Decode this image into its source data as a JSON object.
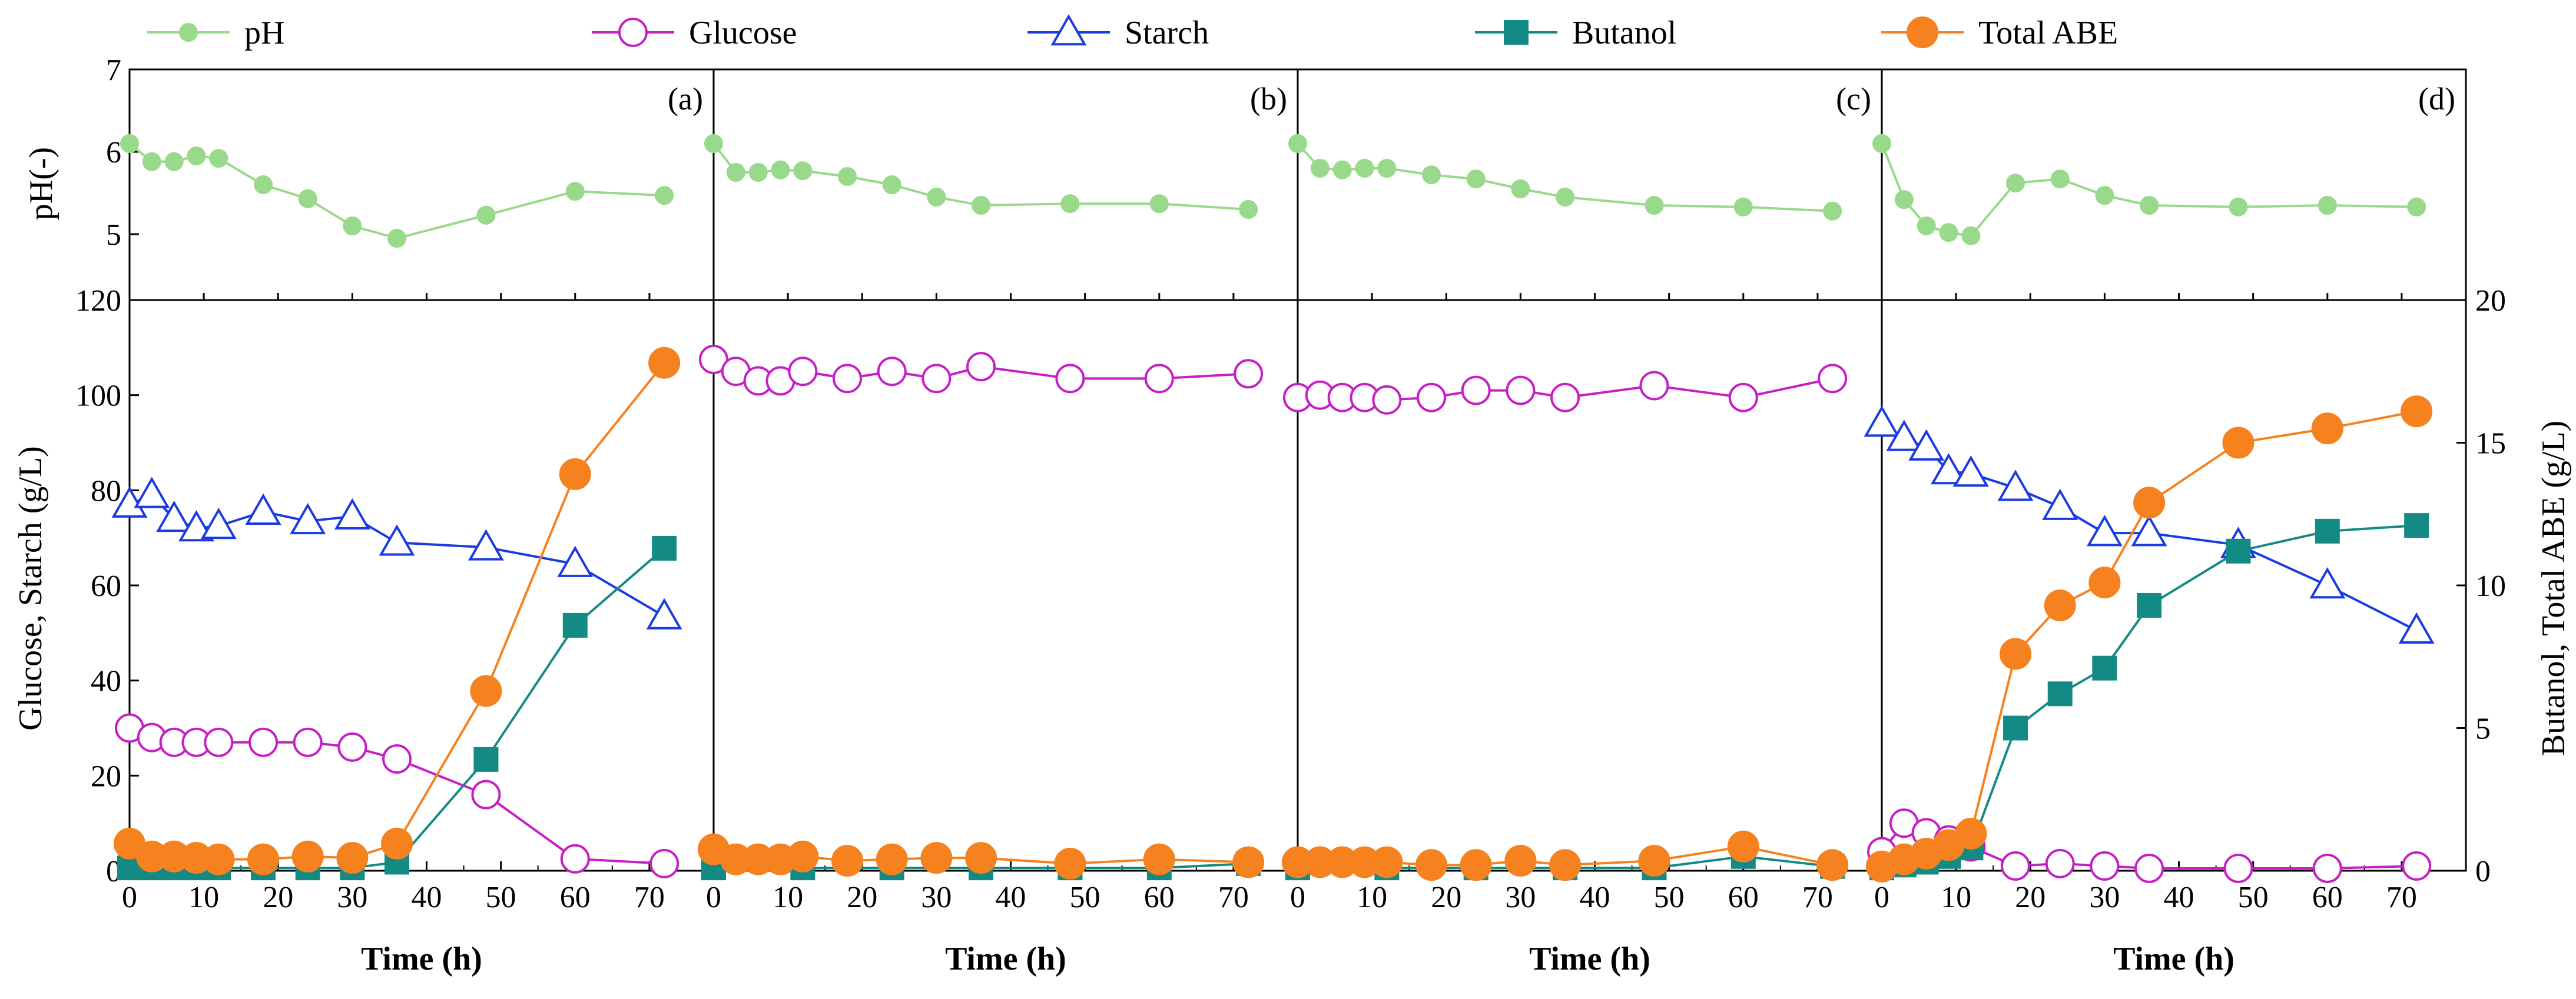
{
  "chart_data": {
    "type": "line",
    "legend": {
      "placement": "top",
      "items": [
        {
          "key": "ph",
          "label": "pH",
          "color": "#99d98c",
          "marker": "filled-circle"
        },
        {
          "key": "glucose",
          "label": "Glucose",
          "color": "#c51fc5",
          "marker": "open-circle"
        },
        {
          "key": "starch",
          "label": "Starch",
          "color": "#1a3be0",
          "marker": "open-triangle"
        },
        {
          "key": "butanol",
          "label": "Butanol",
          "color": "#138a84",
          "marker": "filled-square"
        },
        {
          "key": "abe",
          "label": "Total ABE",
          "color": "#f5821f",
          "marker": "filled-circle"
        }
      ]
    },
    "axes": {
      "x_label": "Time (h)",
      "x_range": [
        0,
        75
      ],
      "x_ticks": [
        0,
        10,
        20,
        30,
        40,
        50,
        60,
        70
      ],
      "ph_label": "pH(-)",
      "ph_range": [
        4.2,
        7
      ],
      "ph_ticks": [
        5,
        6,
        7
      ],
      "left_label": "Glucose, Starch (g/L)",
      "left_range": [
        0,
        120
      ],
      "left_ticks": [
        0,
        20,
        40,
        60,
        80,
        100,
        120
      ],
      "right_label": "Butanol, Total ABE (g/L)",
      "right_range": [
        0,
        20
      ],
      "right_ticks": [
        0,
        5,
        10,
        15,
        20
      ]
    },
    "panels": [
      {
        "label": "(a)",
        "ph": [
          [
            0,
            6.1
          ],
          [
            3,
            5.88
          ],
          [
            6,
            5.88
          ],
          [
            9,
            5.95
          ],
          [
            12,
            5.92
          ],
          [
            18,
            5.6
          ],
          [
            24,
            5.43
          ],
          [
            30,
            5.1
          ],
          [
            36,
            4.95
          ],
          [
            48,
            5.23
          ],
          [
            60,
            5.52
          ],
          [
            72,
            5.47
          ]
        ],
        "glucose": [
          [
            0,
            30
          ],
          [
            3,
            28
          ],
          [
            6,
            27
          ],
          [
            9,
            27
          ],
          [
            12,
            27
          ],
          [
            18,
            27
          ],
          [
            24,
            27
          ],
          [
            30,
            26
          ],
          [
            36,
            23.5
          ],
          [
            48,
            16
          ],
          [
            60,
            2.5
          ],
          [
            72,
            1.5
          ]
        ],
        "starch": [
          [
            0,
            77
          ],
          [
            3,
            79
          ],
          [
            6,
            74
          ],
          [
            9,
            72
          ],
          [
            12,
            72.5
          ],
          [
            18,
            75.5
          ],
          [
            24,
            73.5
          ],
          [
            30,
            74.5
          ],
          [
            36,
            69
          ],
          [
            48,
            68
          ],
          [
            60,
            64.5
          ],
          [
            72,
            53.5
          ]
        ],
        "butanol": [
          [
            0,
            0.1
          ],
          [
            3,
            0.1
          ],
          [
            6,
            0.1
          ],
          [
            9,
            0.1
          ],
          [
            12,
            0.1
          ],
          [
            18,
            0.1
          ],
          [
            24,
            0.1
          ],
          [
            30,
            0.1
          ],
          [
            36,
            0.3
          ],
          [
            48,
            3.9
          ],
          [
            60,
            8.6
          ],
          [
            72,
            11.3
          ]
        ],
        "abe": [
          [
            0,
            0.95
          ],
          [
            3,
            0.5
          ],
          [
            6,
            0.5
          ],
          [
            9,
            0.45
          ],
          [
            12,
            0.4
          ],
          [
            18,
            0.4
          ],
          [
            24,
            0.5
          ],
          [
            30,
            0.45
          ],
          [
            36,
            0.95
          ],
          [
            48,
            6.3
          ],
          [
            60,
            13.9
          ],
          [
            72,
            17.8
          ]
        ]
      },
      {
        "label": "(b)",
        "ph": [
          [
            0,
            6.1
          ],
          [
            3,
            5.75
          ],
          [
            6,
            5.75
          ],
          [
            9,
            5.78
          ],
          [
            12,
            5.77
          ],
          [
            18,
            5.7
          ],
          [
            24,
            5.6
          ],
          [
            30,
            5.45
          ],
          [
            36,
            5.35
          ],
          [
            48,
            5.37
          ],
          [
            60,
            5.37
          ],
          [
            72,
            5.3
          ]
        ],
        "glucose": [
          [
            0,
            107.5
          ],
          [
            3,
            105
          ],
          [
            6,
            103
          ],
          [
            9,
            103
          ],
          [
            12,
            105
          ],
          [
            18,
            103.5
          ],
          [
            24,
            105
          ],
          [
            30,
            103.5
          ],
          [
            36,
            106
          ],
          [
            48,
            103.5
          ],
          [
            60,
            103.5
          ],
          [
            72,
            104.5
          ]
        ],
        "starch": [],
        "butanol": [
          [
            0,
            0.1
          ],
          [
            12,
            0.1
          ],
          [
            24,
            0.1
          ],
          [
            36,
            0.1
          ],
          [
            48,
            0.1
          ],
          [
            60,
            0.1
          ],
          [
            72,
            0.25
          ]
        ],
        "abe": [
          [
            0,
            0.75
          ],
          [
            3,
            0.4
          ],
          [
            6,
            0.4
          ],
          [
            9,
            0.4
          ],
          [
            12,
            0.5
          ],
          [
            18,
            0.35
          ],
          [
            24,
            0.4
          ],
          [
            30,
            0.45
          ],
          [
            36,
            0.45
          ],
          [
            48,
            0.25
          ],
          [
            60,
            0.4
          ],
          [
            72,
            0.3
          ]
        ]
      },
      {
        "label": "(c)",
        "ph": [
          [
            0,
            6.1
          ],
          [
            3,
            5.8
          ],
          [
            6,
            5.78
          ],
          [
            9,
            5.8
          ],
          [
            12,
            5.8
          ],
          [
            18,
            5.72
          ],
          [
            24,
            5.67
          ],
          [
            30,
            5.55
          ],
          [
            36,
            5.45
          ],
          [
            48,
            5.35
          ],
          [
            60,
            5.33
          ],
          [
            72,
            5.28
          ]
        ],
        "glucose": [
          [
            0,
            99.5
          ],
          [
            3,
            100
          ],
          [
            6,
            99.5
          ],
          [
            9,
            99.5
          ],
          [
            12,
            99
          ],
          [
            18,
            99.5
          ],
          [
            24,
            101
          ],
          [
            30,
            101
          ],
          [
            36,
            99.5
          ],
          [
            48,
            102
          ],
          [
            60,
            99.5
          ],
          [
            72,
            103.5
          ]
        ],
        "starch": [],
        "butanol": [
          [
            0,
            0.1
          ],
          [
            12,
            0.1
          ],
          [
            24,
            0.1
          ],
          [
            36,
            0.1
          ],
          [
            48,
            0.1
          ],
          [
            60,
            0.5
          ],
          [
            72,
            0.15
          ]
        ],
        "abe": [
          [
            0,
            0.3
          ],
          [
            3,
            0.3
          ],
          [
            6,
            0.3
          ],
          [
            9,
            0.3
          ],
          [
            12,
            0.3
          ],
          [
            18,
            0.2
          ],
          [
            24,
            0.2
          ],
          [
            30,
            0.35
          ],
          [
            36,
            0.2
          ],
          [
            48,
            0.35
          ],
          [
            60,
            0.85
          ],
          [
            72,
            0.2
          ]
        ]
      },
      {
        "label": "(d)",
        "ph": [
          [
            0,
            6.1
          ],
          [
            3,
            5.42
          ],
          [
            6,
            5.1
          ],
          [
            9,
            5.02
          ],
          [
            12,
            4.98
          ],
          [
            18,
            5.62
          ],
          [
            24,
            5.67
          ],
          [
            30,
            5.47
          ],
          [
            36,
            5.35
          ],
          [
            48,
            5.33
          ],
          [
            60,
            5.35
          ],
          [
            72,
            5.33
          ]
        ],
        "glucose": [
          [
            0,
            4
          ],
          [
            3,
            10
          ],
          [
            6,
            8
          ],
          [
            9,
            6.5
          ],
          [
            12,
            5
          ],
          [
            18,
            1
          ],
          [
            24,
            1.5
          ],
          [
            30,
            1
          ],
          [
            36,
            0.5
          ],
          [
            48,
            0.5
          ],
          [
            60,
            0.5
          ],
          [
            72,
            1
          ]
        ],
        "starch": [
          [
            0,
            94
          ],
          [
            3,
            91
          ],
          [
            6,
            89
          ],
          [
            9,
            84
          ],
          [
            12,
            83.5
          ],
          [
            18,
            80.5
          ],
          [
            24,
            76.5
          ],
          [
            30,
            71
          ],
          [
            36,
            71
          ],
          [
            48,
            68.5
          ],
          [
            60,
            60
          ],
          [
            72,
            50.5
          ]
        ],
        "butanol": [
          [
            0,
            0.1
          ],
          [
            3,
            0.2
          ],
          [
            6,
            0.3
          ],
          [
            9,
            0.5
          ],
          [
            12,
            0.8
          ],
          [
            18,
            5
          ],
          [
            24,
            6.2
          ],
          [
            30,
            7.1
          ],
          [
            36,
            9.3
          ],
          [
            48,
            11.2
          ],
          [
            60,
            11.9
          ],
          [
            72,
            12.1
          ]
        ],
        "abe": [
          [
            0,
            0.15
          ],
          [
            3,
            0.4
          ],
          [
            6,
            0.6
          ],
          [
            9,
            0.9
          ],
          [
            12,
            1.3
          ],
          [
            18,
            7.6
          ],
          [
            24,
            9.3
          ],
          [
            30,
            10.1
          ],
          [
            36,
            12.9
          ],
          [
            48,
            15
          ],
          [
            60,
            15.5
          ],
          [
            72,
            16.1
          ]
        ]
      }
    ]
  }
}
